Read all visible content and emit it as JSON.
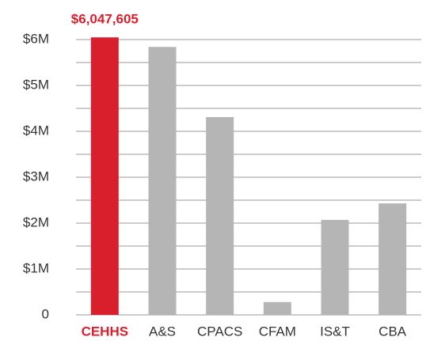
{
  "chart_data": {
    "type": "bar",
    "categories": [
      "CEHHS",
      "A&S",
      "CPACS",
      "CFAM",
      "IS&T",
      "CBA"
    ],
    "values": [
      6047605,
      5840000,
      4310000,
      280000,
      2070000,
      2430000
    ],
    "value_labels": [
      "$6,047,605",
      null,
      null,
      null,
      null,
      null
    ],
    "colors": [
      "#da1f2c",
      "#b5b5b5",
      "#b5b5b5",
      "#b5b5b5",
      "#b5b5b5",
      "#b5b5b5"
    ],
    "ylim": [
      0,
      6200000
    ],
    "yticks": [
      0,
      {
        "value": 1000000,
        "label": "$1M"
      },
      {
        "value": 2000000,
        "label": "$2M"
      },
      {
        "value": 3000000,
        "label": "$3M"
      },
      {
        "value": 4000000,
        "label": "$4M"
      },
      {
        "value": 5000000,
        "label": "$5M"
      },
      {
        "value": 6000000,
        "label": "$6M"
      }
    ],
    "minor_yticks": [
      500000,
      1500000,
      2500000,
      3500000,
      4500000,
      5500000
    ],
    "grid": true
  }
}
